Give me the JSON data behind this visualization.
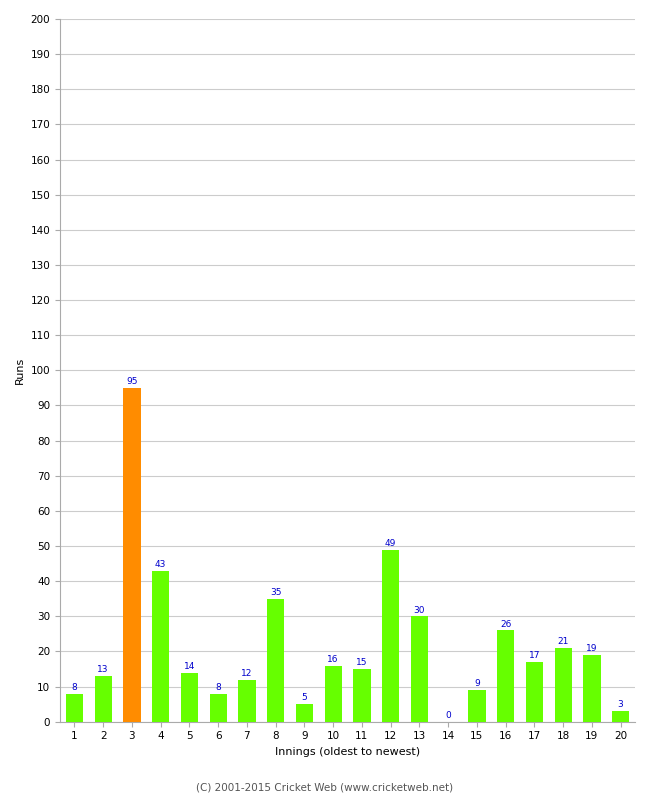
{
  "innings": [
    1,
    2,
    3,
    4,
    5,
    6,
    7,
    8,
    9,
    10,
    11,
    12,
    13,
    14,
    15,
    16,
    17,
    18,
    19,
    20
  ],
  "runs": [
    8,
    13,
    95,
    43,
    14,
    8,
    12,
    35,
    5,
    16,
    15,
    49,
    30,
    0,
    9,
    26,
    17,
    21,
    19,
    3
  ],
  "bar_colors": [
    "#66ff00",
    "#66ff00",
    "#ff8c00",
    "#66ff00",
    "#66ff00",
    "#66ff00",
    "#66ff00",
    "#66ff00",
    "#66ff00",
    "#66ff00",
    "#66ff00",
    "#66ff00",
    "#66ff00",
    "#66ff00",
    "#66ff00",
    "#66ff00",
    "#66ff00",
    "#66ff00",
    "#66ff00",
    "#66ff00"
  ],
  "xlabel": "Innings (oldest to newest)",
  "ylabel": "Runs",
  "ylim": [
    0,
    200
  ],
  "yticks": [
    0,
    10,
    20,
    30,
    40,
    50,
    60,
    70,
    80,
    90,
    100,
    110,
    120,
    130,
    140,
    150,
    160,
    170,
    180,
    190,
    200
  ],
  "label_color": "#0000cc",
  "label_fontsize": 6.5,
  "axis_label_fontsize": 8,
  "tick_fontsize": 7.5,
  "footer": "(C) 2001-2015 Cricket Web (www.cricketweb.net)",
  "footer_fontsize": 7.5,
  "grid_color": "#cccccc",
  "background_color": "#ffffff"
}
